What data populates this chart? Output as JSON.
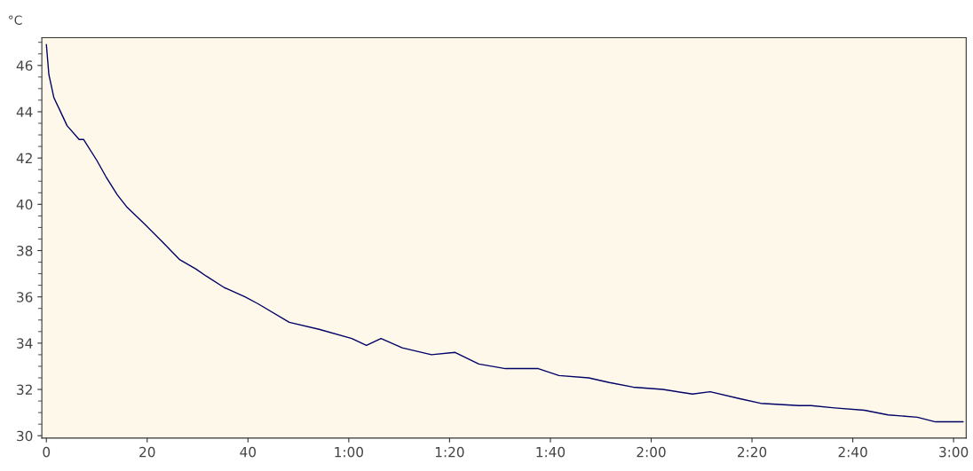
{
  "chart_data": {
    "type": "line",
    "ylabel": "°C",
    "x": [
      0,
      0.5,
      1.5,
      2.6,
      4.1,
      6.5,
      7.4,
      10,
      11.8,
      14.1,
      15.9,
      19.7,
      22.9,
      26.5,
      29.7,
      31.7,
      35.3,
      39.4,
      42,
      48.2,
      54.1,
      60.6,
      63.5,
      66.4,
      70.6,
      76.4,
      81.1,
      85.8,
      91.1,
      97.6,
      101.7,
      107.6,
      111.7,
      116.4,
      122.3,
      128.2,
      131.7,
      137.6,
      141.7,
      149.3,
      151.7,
      156.4,
      162.3,
      167,
      172.8,
      176.4,
      181.9
    ],
    "series": [
      {
        "color": "#000066",
        "values": [
          46.9,
          45.6,
          44.6,
          44.1,
          43.4,
          42.8,
          42.8,
          41.9,
          41.2,
          40.4,
          39.9,
          39.1,
          38.4,
          37.6,
          37.2,
          36.9,
          36.4,
          36.0,
          35.7,
          34.9,
          34.6,
          34.2,
          33.9,
          34.2,
          33.8,
          33.5,
          33.6,
          33.1,
          32.9,
          32.9,
          32.6,
          32.5,
          32.3,
          32.1,
          32.0,
          31.8,
          31.9,
          31.6,
          31.4,
          31.3,
          31.3,
          31.2,
          31.1,
          30.9,
          30.8,
          30.6,
          30.6
        ]
      }
    ],
    "xlim": [
      -0.9,
      182.5
    ],
    "ylim": [
      29.9,
      47.2
    ],
    "xticks": [
      0,
      20,
      40,
      {
        "value": 60,
        "label": "1:00"
      },
      {
        "value": 80,
        "label": "1:20"
      },
      {
        "value": 100,
        "label": "1:40"
      },
      {
        "value": 120,
        "label": "2:00"
      },
      {
        "value": 140,
        "label": "2:20"
      },
      {
        "value": 160,
        "label": "2:40"
      },
      {
        "value": 180,
        "label": "3:00"
      }
    ],
    "yticks": [
      30,
      32,
      34,
      36,
      38,
      40,
      42,
      44,
      46
    ],
    "grid": false,
    "marker": "none",
    "line_style": "solid"
  }
}
